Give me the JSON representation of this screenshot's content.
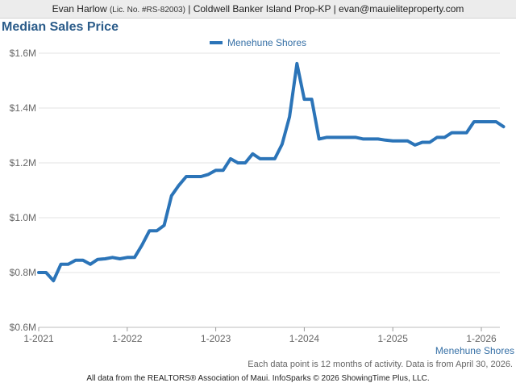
{
  "header": {
    "agent_name": "Evan Harlow",
    "license": "(Lic. No. #RS-82003)",
    "company": "| Coldwell Banker Island Prop-KP |",
    "email": "evan@mauieliteproperty.com"
  },
  "chart_title": "Median Sales Price",
  "note": "Each data point is 12 months of activity. Data is from April 30, 2026.",
  "footer": "All data from the REALTORS® Association of Maui. InfoSparks © 2026 ShowingTime Plus, LLC.",
  "colors": {
    "series": "#2b74b8",
    "title": "#2b5c8a"
  },
  "chart_data": {
    "type": "line",
    "title": "Median Sales Price",
    "xlabel": "",
    "ylabel": "",
    "ylim": [
      0.6,
      1.6
    ],
    "y_unit": "$M",
    "yticks": [
      0.6,
      0.8,
      1.0,
      1.2,
      1.4,
      1.6
    ],
    "ytick_labels": [
      "$0.6M",
      "$0.8M",
      "$1.0M",
      "$1.2M",
      "$1.4M",
      "$1.6M"
    ],
    "xticks": [
      "1-2021",
      "1-2022",
      "1-2023",
      "1-2024",
      "1-2025",
      "1-2026"
    ],
    "legend": "top-center",
    "grid": true,
    "series": [
      {
        "name": "Menehune Shores",
        "x": [
          "1-2021",
          "2-2021",
          "3-2021",
          "4-2021",
          "5-2021",
          "6-2021",
          "7-2021",
          "8-2021",
          "9-2021",
          "10-2021",
          "11-2021",
          "12-2021",
          "1-2022",
          "2-2022",
          "3-2022",
          "4-2022",
          "5-2022",
          "6-2022",
          "7-2022",
          "8-2022",
          "9-2022",
          "10-2022",
          "11-2022",
          "12-2022",
          "1-2023",
          "2-2023",
          "3-2023",
          "4-2023",
          "5-2023",
          "6-2023",
          "7-2023",
          "8-2023",
          "9-2023",
          "10-2023",
          "11-2023",
          "12-2023",
          "1-2024",
          "2-2024",
          "3-2024",
          "4-2024",
          "5-2024",
          "6-2024",
          "7-2024",
          "8-2024",
          "9-2024",
          "10-2024",
          "11-2024",
          "12-2024",
          "1-2025",
          "2-2025",
          "3-2025",
          "4-2025",
          "5-2025",
          "6-2025",
          "7-2025",
          "8-2025",
          "9-2025",
          "10-2025",
          "11-2025",
          "12-2025",
          "1-2026",
          "2-2026",
          "3-2026",
          "4-2026"
        ],
        "values": [
          0.8,
          0.8,
          0.77,
          0.83,
          0.83,
          0.845,
          0.845,
          0.83,
          0.848,
          0.85,
          0.855,
          0.85,
          0.855,
          0.855,
          0.9,
          0.952,
          0.952,
          0.972,
          1.08,
          1.118,
          1.15,
          1.15,
          1.15,
          1.158,
          1.173,
          1.173,
          1.215,
          1.2,
          1.2,
          1.233,
          1.215,
          1.215,
          1.215,
          1.268,
          1.368,
          1.562,
          1.432,
          1.432,
          1.287,
          1.293,
          1.293,
          1.293,
          1.293,
          1.293,
          1.287,
          1.287,
          1.287,
          1.283,
          1.28,
          1.28,
          1.28,
          1.265,
          1.275,
          1.275,
          1.293,
          1.293,
          1.31,
          1.31,
          1.31,
          1.35,
          1.35,
          1.35,
          1.35,
          1.332
        ]
      }
    ]
  }
}
